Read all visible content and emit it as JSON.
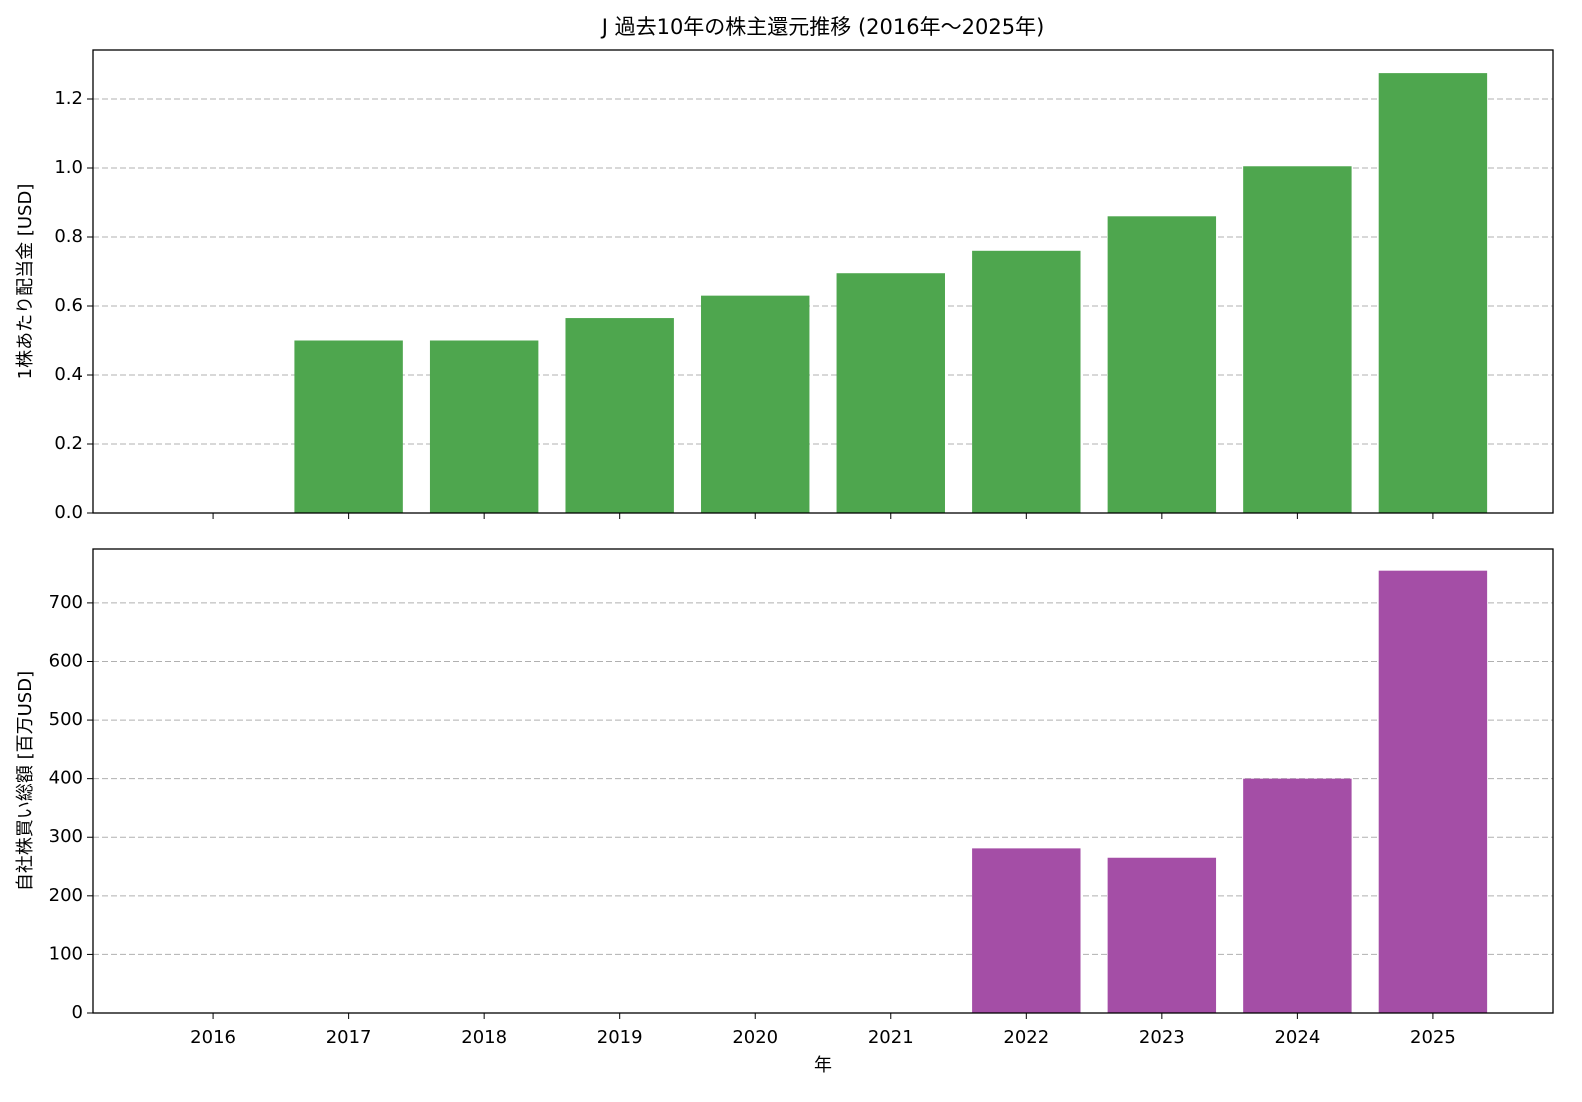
{
  "chart_data": [
    {
      "type": "bar",
      "title": "J 過去10年の株主還元推移 (2016年～2025年)",
      "ylabel": "1株あたり配当金 [USD]",
      "values": [
        0,
        0.5,
        0.5,
        0.565,
        0.63,
        0.695,
        0.76,
        0.86,
        1.005,
        1.275
      ],
      "color": "#4ea64e",
      "ylim": [
        0,
        1.342
      ],
      "yticks": [
        {
          "value": 0,
          "label": "0.0"
        },
        0.2,
        0.4,
        0.6,
        0.8,
        {
          "value": 1,
          "label": "1.0"
        },
        1.2
      ],
      "grid": true
    },
    {
      "type": "bar",
      "ylabel": "自社株買い総額 [百万USD]",
      "xlabel": "年",
      "categories": [
        "2016",
        "2017",
        "2018",
        "2019",
        "2020",
        "2021",
        "2022",
        "2023",
        "2024",
        "2025"
      ],
      "values": [
        0,
        0,
        0,
        0,
        0,
        0,
        281,
        265,
        400,
        755
      ],
      "color": "#a44ea6",
      "ylim": [
        0,
        792
      ],
      "yticks": [
        0,
        100,
        200,
        300,
        400,
        500,
        600,
        700
      ],
      "grid": true
    }
  ]
}
